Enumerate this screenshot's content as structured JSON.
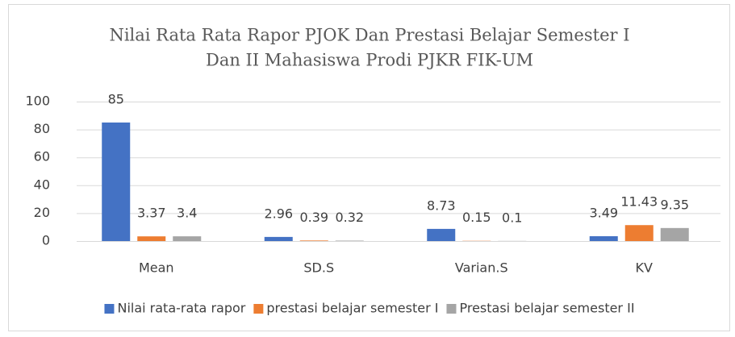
{
  "chart_data": {
    "type": "bar",
    "title": [
      "Nilai Rata Rata Rapor PJOK Dan Prestasi Belajar Semester I",
      "Dan II Mahasiswa Prodi PJKR FIK-UM"
    ],
    "categories": [
      "Mean",
      "SD.S",
      "Varian.S",
      "KV"
    ],
    "series": [
      {
        "name": "Nilai rata-rata rapor",
        "color": "#4472c4",
        "values": [
          85,
          2.96,
          8.73,
          3.49
        ]
      },
      {
        "name": "prestasi belajar semester I",
        "color": "#ed7d31",
        "values": [
          3.37,
          0.39,
          0.15,
          11.43
        ]
      },
      {
        "name": "Prestasi belajar semester II",
        "color": "#a5a5a5",
        "values": [
          3.4,
          0.32,
          0.1,
          9.35
        ]
      }
    ],
    "ylim": [
      0,
      100
    ],
    "yticks": [
      0,
      20,
      40,
      60,
      80,
      100
    ],
    "grid": true,
    "legend": "bottom"
  }
}
